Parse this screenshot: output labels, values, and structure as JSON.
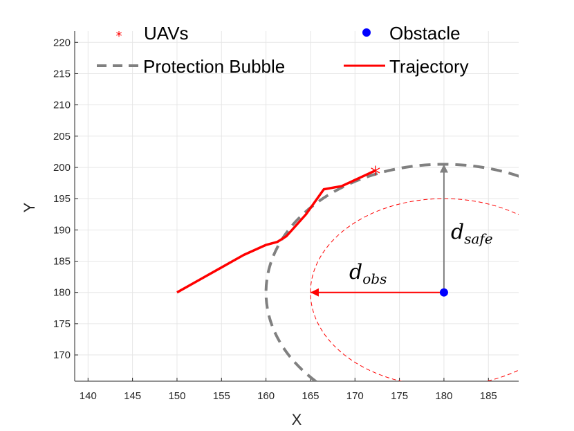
{
  "chart_data": {
    "type": "line",
    "xlabel": "X",
    "ylabel": "Y",
    "xlim": [
      138.5,
      188.4
    ],
    "ylim": [
      165.8,
      221.8
    ],
    "xticks": [
      140,
      145,
      150,
      155,
      160,
      165,
      170,
      175,
      180,
      185
    ],
    "yticks": [
      170,
      175,
      180,
      185,
      190,
      195,
      200,
      205,
      210,
      215,
      220
    ],
    "grid": true,
    "legend": {
      "placement": "top",
      "entries": [
        {
          "label": "UAVs",
          "marker": "asterisk",
          "color": "#ff0000"
        },
        {
          "label": "Obstacle",
          "marker": "dot",
          "color": "#0000ff"
        },
        {
          "label": "Protection Bubble",
          "style": "dashed",
          "color": "#808080"
        },
        {
          "label": "Trajectory",
          "style": "solid",
          "color": "#ff0000"
        }
      ]
    },
    "series": [
      {
        "name": "Trajectory",
        "color": "#ff0000",
        "x": [
          150,
          152.5,
          155,
          157.5,
          160,
          161.3,
          162.3,
          164.5,
          166.5,
          168.5,
          172.3
        ],
        "y": [
          180,
          182,
          184,
          186,
          187.6,
          188.1,
          189,
          192.5,
          196.5,
          197,
          199.5
        ]
      },
      {
        "name": "UAVs",
        "color": "#ff0000",
        "x": [
          172.3
        ],
        "y": [
          199.5
        ]
      },
      {
        "name": "Obstacle",
        "color": "#0000ff",
        "x": [
          180
        ],
        "y": [
          180
        ]
      }
    ],
    "protection_bubble": {
      "center": [
        180,
        180
      ],
      "radius_x": 20,
      "radius_y": 20.5,
      "color": "#808080"
    },
    "inner_circle": {
      "center": [
        180,
        180
      ],
      "radius_x": 15,
      "radius_y": 15,
      "color": "#ff0000"
    },
    "annotations": [
      {
        "base": "d",
        "sub": "obs",
        "color": "#000000"
      },
      {
        "base": "d",
        "sub": "safe",
        "color": "#000000"
      }
    ],
    "arrows": {
      "d_obs": {
        "from": [
          180,
          180
        ],
        "to": [
          165,
          180
        ],
        "color": "#ff0000"
      },
      "d_safe": {
        "from": [
          180,
          180
        ],
        "to": [
          180,
          200.5
        ],
        "color": "#808080"
      }
    }
  }
}
